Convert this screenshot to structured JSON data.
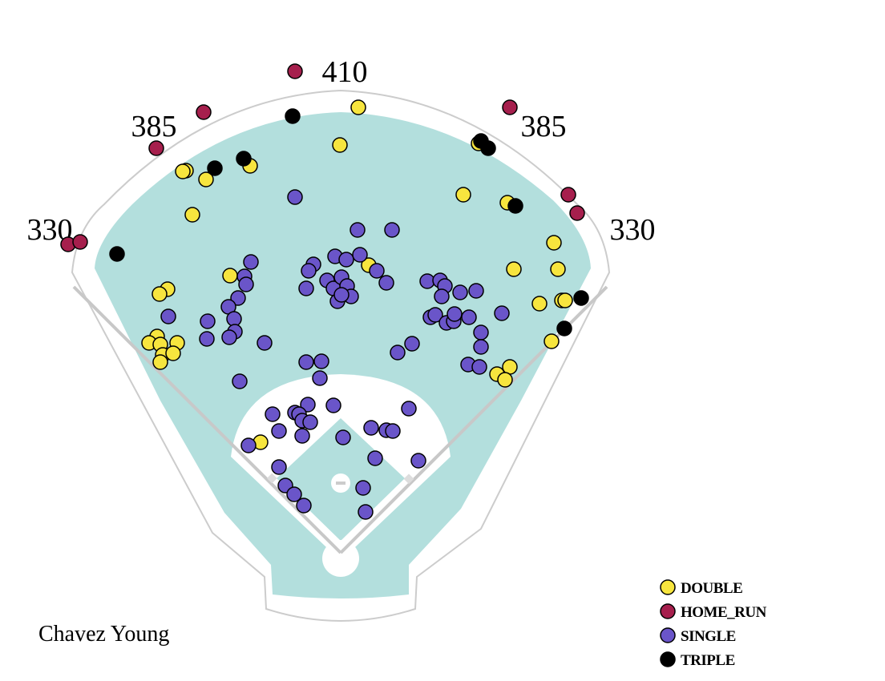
{
  "chart_data": {
    "type": "scatter",
    "title": "Chavez Young",
    "annotations": [
      "410",
      "385",
      "385",
      "330",
      "330"
    ],
    "series": [
      {
        "name": "DOUBLE",
        "color": "#f7e53e",
        "x": [
          447,
          424,
          312,
          232,
          228,
          257,
          240,
          578,
          597,
          633,
          691,
          696,
          641,
          460,
          287,
          209,
          199,
          196,
          186,
          221,
          200,
          203,
          216,
          200,
          673,
          701,
          705,
          688,
          636,
          620,
          630,
          325
        ],
        "values": [
          134,
          181,
          207,
          213,
          214,
          224,
          268,
          243,
          179,
          253,
          303,
          336,
          336,
          331,
          344,
          361,
          367,
          420,
          428,
          428,
          430,
          443,
          441,
          452,
          379,
          375,
          375,
          426,
          458,
          467,
          474,
          552
        ]
      },
      {
        "name": "HOME_RUN",
        "color": "#a61f4d",
        "x": [
          368,
          254,
          195,
          85,
          100,
          636,
          709,
          720
        ],
        "values": [
          89,
          140,
          185,
          305,
          302,
          134,
          243,
          266
        ]
      },
      {
        "name": "SINGLE",
        "color": "#6a55c9",
        "x": [
          368,
          446,
          489,
          313,
          305,
          307,
          297,
          285,
          292,
          293,
          259,
          286,
          258,
          330,
          210,
          299,
          382,
          401,
          399,
          418,
          432,
          449,
          391,
          385,
          382,
          408,
          416,
          426,
          433,
          438,
          421,
          426,
          470,
          482,
          533,
          549,
          555,
          551,
          574,
          594,
          537,
          543,
          557,
          566,
          567,
          585,
          626,
          600,
          600,
          514,
          496,
          584,
          598,
          384,
          416,
          510,
          340,
          368,
          373,
          377,
          387,
          348,
          377,
          463,
          482,
          490,
          428,
          310,
          468,
          522,
          348,
          356,
          367,
          379,
          453,
          456
        ],
        "values": [
          246,
          287,
          287,
          327,
          345,
          355,
          372,
          383,
          398,
          414,
          401,
          421,
          423,
          428,
          395,
          476,
          452,
          451,
          472,
          320,
          324,
          318,
          330,
          338,
          360,
          350,
          360,
          346,
          357,
          370,
          376,
          368,
          338,
          353,
          351,
          350,
          357,
          370,
          365,
          363,
          396,
          393,
          403,
          401,
          392,
          396,
          391,
          415,
          433,
          429,
          440,
          455,
          458,
          505,
          506,
          510,
          517,
          515,
          517,
          525,
          527,
          538,
          544,
          534,
          537,
          538,
          546,
          556,
          572,
          575,
          583,
          606,
          617,
          631,
          609,
          639
        ]
      },
      {
        "name": "TRIPLE",
        "color": "#000000",
        "x": [
          365,
          304,
          268,
          146,
          600,
          609,
          643,
          725,
          704
        ],
        "values": [
          145,
          198,
          210,
          317,
          176,
          185,
          257,
          372,
          410
        ]
      }
    ]
  }
}
